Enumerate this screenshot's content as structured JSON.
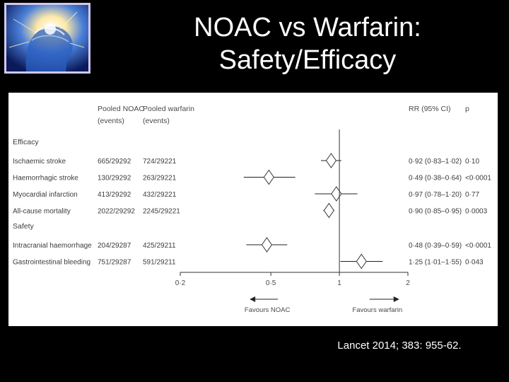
{
  "slide": {
    "title_line1": "NOAC vs Warfarin:",
    "title_line2": "Safety/Efficacy",
    "citation": "Lancet 2014; 383: 955-62.",
    "image_icon": "glowing-brain-head-illustration"
  },
  "chart_data": {
    "type": "forest",
    "headers": {
      "noac_l1": "Pooled NOAC",
      "noac_l2": "(events)",
      "warf_l1": "Pooled warfarin",
      "warf_l2": "(events)",
      "rr": "RR (95% CI)",
      "p": "p"
    },
    "groups": [
      {
        "name": "Efficacy",
        "rows": [
          {
            "label": "Ischaemic stroke",
            "noac": "665/29292",
            "warfarin": "724/29221",
            "rr": 0.92,
            "lo": 0.83,
            "hi": 1.02,
            "rr_text": "0·92 (0·83–1·02)",
            "p": "0·10"
          },
          {
            "label": "Haemorrhagic stroke",
            "noac": "130/29292",
            "warfarin": "263/29221",
            "rr": 0.49,
            "lo": 0.38,
            "hi": 0.64,
            "rr_text": "0·49 (0·38–0·64)",
            "p": "<0·0001"
          },
          {
            "label": "Myocardial infarction",
            "noac": "413/29292",
            "warfarin": "432/29221",
            "rr": 0.97,
            "lo": 0.78,
            "hi": 1.2,
            "rr_text": "0·97 (0·78–1·20)",
            "p": "0·77"
          },
          {
            "label": "All-cause mortality",
            "noac": "2022/29292",
            "warfarin": "2245/29221",
            "rr": 0.9,
            "lo": 0.85,
            "hi": 0.95,
            "rr_text": "0·90 (0·85–0·95)",
            "p": "0·0003"
          }
        ]
      },
      {
        "name": "Safety",
        "rows": [
          {
            "label": "Intracranial haemorrhage",
            "noac": "204/29287",
            "warfarin": "425/29211",
            "rr": 0.48,
            "lo": 0.39,
            "hi": 0.59,
            "rr_text": "0·48 (0·39–0·59)",
            "p": "<0·0001"
          },
          {
            "label": "Gastrointestinal bleeding",
            "noac": "751/29287",
            "warfarin": "591/29211",
            "rr": 1.25,
            "lo": 1.01,
            "hi": 1.55,
            "rr_text": "1·25 (1·01–1·55)",
            "p": "0·043"
          }
        ]
      }
    ],
    "x_scale": "log",
    "xlim": [
      0.2,
      2
    ],
    "x_ticks": [
      0.2,
      0.5,
      1,
      2
    ],
    "x_tick_labels": [
      "0·2",
      "0·5",
      "1",
      "2"
    ],
    "reference_line": 1,
    "direction_left": "Favours NOAC",
    "direction_right": "Favours warfarin"
  }
}
